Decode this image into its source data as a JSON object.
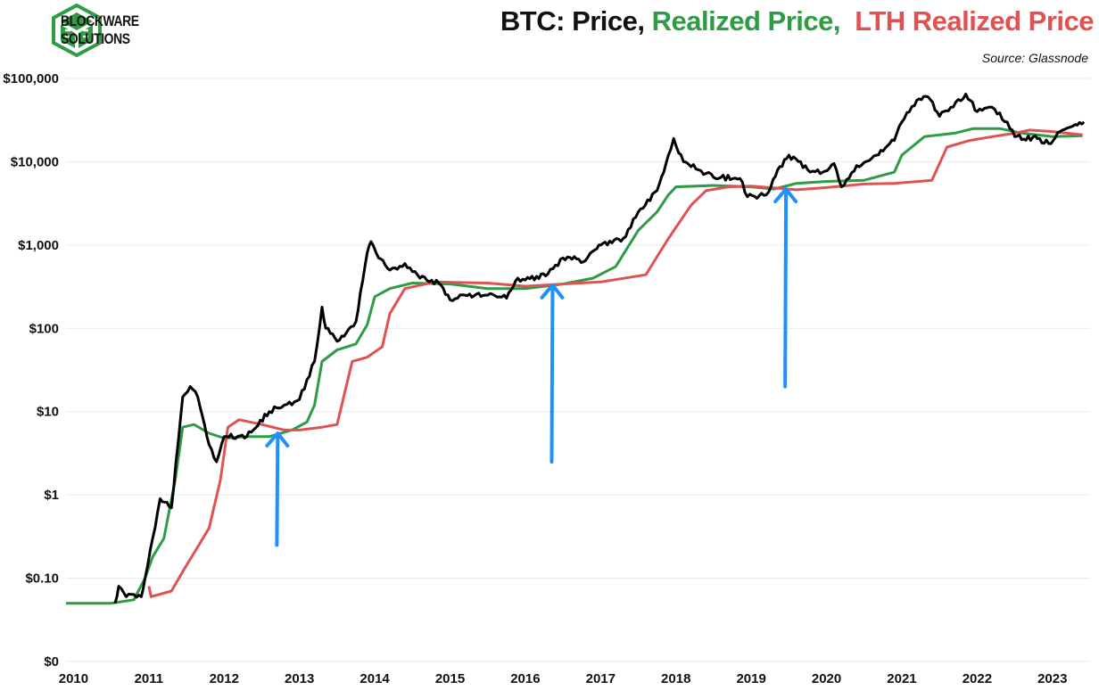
{
  "brand": {
    "line1": "BLOCKWARE",
    "line2": "SOLUTIONS",
    "color": "#2f9b45"
  },
  "title": {
    "part1": "BTC: Price, ",
    "part2": "Realized Price,",
    "part3": "  LTH Realized Price",
    "color1": "#111111",
    "color2": "#2f9b45",
    "color3": "#e05252"
  },
  "source": "Source: Glassnode",
  "chart_data": {
    "type": "line",
    "y_scale": "log",
    "ylim": [
      0.01,
      100000
    ],
    "xlim": [
      2009.9,
      2023.5
    ],
    "y_ticks": [
      {
        "value": 0.01,
        "label": "$0"
      },
      {
        "value": 0.1,
        "label": "$0.10"
      },
      {
        "value": 1,
        "label": "$1"
      },
      {
        "value": 10,
        "label": "$10"
      },
      {
        "value": 100,
        "label": "$100"
      },
      {
        "value": 1000,
        "label": "$1,000"
      },
      {
        "value": 10000,
        "label": "$10,000"
      },
      {
        "value": 100000,
        "label": "$100,000"
      }
    ],
    "x_ticks": [
      {
        "value": 2010,
        "label": "2010"
      },
      {
        "value": 2011,
        "label": "2011"
      },
      {
        "value": 2012,
        "label": "2012"
      },
      {
        "value": 2013,
        "label": "2013"
      },
      {
        "value": 2014,
        "label": "2014"
      },
      {
        "value": 2015,
        "label": "2015"
      },
      {
        "value": 2016,
        "label": "2016"
      },
      {
        "value": 2017,
        "label": "2017"
      },
      {
        "value": 2018,
        "label": "2018"
      },
      {
        "value": 2019,
        "label": "2019"
      },
      {
        "value": 2020,
        "label": "2020"
      },
      {
        "value": 2021,
        "label": "2021"
      },
      {
        "value": 2022,
        "label": "2022"
      },
      {
        "value": 2023,
        "label": "2023"
      }
    ],
    "series": [
      {
        "name": "Realized Price",
        "color": "#2f9b45",
        "points": [
          [
            2009.9,
            0.05
          ],
          [
            2010.5,
            0.05
          ],
          [
            2010.8,
            0.055
          ],
          [
            2010.95,
            0.1
          ],
          [
            2011.05,
            0.18
          ],
          [
            2011.2,
            0.3
          ],
          [
            2011.35,
            1.5
          ],
          [
            2011.45,
            6.5
          ],
          [
            2011.6,
            7
          ],
          [
            2011.8,
            5.5
          ],
          [
            2012.0,
            4.8
          ],
          [
            2012.3,
            5.0
          ],
          [
            2012.6,
            5.0
          ],
          [
            2012.9,
            6.0
          ],
          [
            2013.1,
            7.5
          ],
          [
            2013.2,
            12
          ],
          [
            2013.3,
            40
          ],
          [
            2013.5,
            55
          ],
          [
            2013.75,
            65
          ],
          [
            2013.9,
            110
          ],
          [
            2014.0,
            240
          ],
          [
            2014.2,
            300
          ],
          [
            2014.5,
            350
          ],
          [
            2015.0,
            340
          ],
          [
            2015.5,
            300
          ],
          [
            2016.0,
            300
          ],
          [
            2016.5,
            340
          ],
          [
            2016.9,
            400
          ],
          [
            2017.2,
            550
          ],
          [
            2017.5,
            1500
          ],
          [
            2017.75,
            2500
          ],
          [
            2017.9,
            4000
          ],
          [
            2018.0,
            5000
          ],
          [
            2018.5,
            5200
          ],
          [
            2019.0,
            5000
          ],
          [
            2019.3,
            4700
          ],
          [
            2019.6,
            5500
          ],
          [
            2020.0,
            5800
          ],
          [
            2020.5,
            6000
          ],
          [
            2020.9,
            7500
          ],
          [
            2021.0,
            12000
          ],
          [
            2021.3,
            20000
          ],
          [
            2021.7,
            22000
          ],
          [
            2021.95,
            25000
          ],
          [
            2022.3,
            25000
          ],
          [
            2022.6,
            22000
          ],
          [
            2023.0,
            20000
          ],
          [
            2023.4,
            20500
          ]
        ]
      },
      {
        "name": "LTH Realized Price",
        "color": "#e05252",
        "points": [
          [
            2011.0,
            0.08
          ],
          [
            2011.03,
            0.06
          ],
          [
            2011.3,
            0.07
          ],
          [
            2011.45,
            0.12
          ],
          [
            2011.6,
            0.2
          ],
          [
            2011.8,
            0.4
          ],
          [
            2011.95,
            1.5
          ],
          [
            2012.05,
            6.5
          ],
          [
            2012.2,
            8
          ],
          [
            2012.5,
            7
          ],
          [
            2012.8,
            6
          ],
          [
            2013.0,
            6
          ],
          [
            2013.3,
            6.5
          ],
          [
            2013.5,
            7
          ],
          [
            2013.7,
            40
          ],
          [
            2013.9,
            45
          ],
          [
            2014.1,
            60
          ],
          [
            2014.2,
            150
          ],
          [
            2014.4,
            300
          ],
          [
            2014.8,
            360
          ],
          [
            2015.5,
            350
          ],
          [
            2016.0,
            320
          ],
          [
            2016.5,
            340
          ],
          [
            2017.0,
            360
          ],
          [
            2017.6,
            440
          ],
          [
            2017.9,
            1200
          ],
          [
            2018.2,
            3000
          ],
          [
            2018.4,
            4500
          ],
          [
            2018.7,
            5000
          ],
          [
            2019.0,
            5100
          ],
          [
            2019.6,
            4600
          ],
          [
            2020.0,
            4900
          ],
          [
            2020.5,
            5400
          ],
          [
            2020.9,
            5500
          ],
          [
            2021.4,
            6000
          ],
          [
            2021.6,
            15000
          ],
          [
            2021.9,
            18000
          ],
          [
            2022.2,
            20000
          ],
          [
            2022.5,
            22000
          ],
          [
            2022.7,
            24000
          ],
          [
            2023.0,
            23000
          ],
          [
            2023.4,
            21000
          ]
        ]
      },
      {
        "name": "Price",
        "color": "#000000",
        "points": [
          [
            2010.55,
            0.05
          ],
          [
            2010.6,
            0.08
          ],
          [
            2010.7,
            0.06
          ],
          [
            2010.9,
            0.06
          ],
          [
            2010.95,
            0.1
          ],
          [
            2011.05,
            0.3
          ],
          [
            2011.15,
            0.9
          ],
          [
            2011.3,
            0.7
          ],
          [
            2011.45,
            15
          ],
          [
            2011.55,
            20
          ],
          [
            2011.65,
            15
          ],
          [
            2011.8,
            4
          ],
          [
            2011.9,
            2.5
          ],
          [
            2012.0,
            5
          ],
          [
            2012.3,
            5
          ],
          [
            2012.6,
            10
          ],
          [
            2012.8,
            12
          ],
          [
            2013.0,
            14
          ],
          [
            2013.2,
            40
          ],
          [
            2013.3,
            180
          ],
          [
            2013.35,
            100
          ],
          [
            2013.5,
            70
          ],
          [
            2013.75,
            120
          ],
          [
            2013.9,
            800
          ],
          [
            2013.95,
            1100
          ],
          [
            2014.05,
            700
          ],
          [
            2014.2,
            500
          ],
          [
            2014.4,
            600
          ],
          [
            2014.6,
            400
          ],
          [
            2014.85,
            350
          ],
          [
            2015.0,
            220
          ],
          [
            2015.2,
            250
          ],
          [
            2015.5,
            250
          ],
          [
            2015.75,
            230
          ],
          [
            2015.9,
            400
          ],
          [
            2016.0,
            380
          ],
          [
            2016.3,
            450
          ],
          [
            2016.5,
            700
          ],
          [
            2016.8,
            650
          ],
          [
            2016.95,
            900
          ],
          [
            2017.0,
            1000
          ],
          [
            2017.3,
            1200
          ],
          [
            2017.5,
            2500
          ],
          [
            2017.75,
            4500
          ],
          [
            2017.9,
            12000
          ],
          [
            2017.97,
            19000
          ],
          [
            2018.1,
            10000
          ],
          [
            2018.3,
            8000
          ],
          [
            2018.5,
            6500
          ],
          [
            2018.85,
            6300
          ],
          [
            2018.95,
            3800
          ],
          [
            2019.2,
            4000
          ],
          [
            2019.35,
            8000
          ],
          [
            2019.5,
            12000
          ],
          [
            2019.75,
            8000
          ],
          [
            2019.95,
            7500
          ],
          [
            2020.1,
            9500
          ],
          [
            2020.2,
            5000
          ],
          [
            2020.4,
            9000
          ],
          [
            2020.6,
            11000
          ],
          [
            2020.9,
            18000
          ],
          [
            2021.0,
            30000
          ],
          [
            2021.2,
            55000
          ],
          [
            2021.35,
            60000
          ],
          [
            2021.5,
            35000
          ],
          [
            2021.65,
            45000
          ],
          [
            2021.85,
            65000
          ],
          [
            2022.0,
            40000
          ],
          [
            2022.2,
            45000
          ],
          [
            2022.4,
            30000
          ],
          [
            2022.5,
            20000
          ],
          [
            2022.8,
            19000
          ],
          [
            2022.95,
            16500
          ],
          [
            2023.1,
            23000
          ],
          [
            2023.3,
            28000
          ],
          [
            2023.42,
            30000
          ]
        ]
      }
    ],
    "annotations": [
      {
        "type": "arrow",
        "color": "#1e90ff",
        "x": 2012.7,
        "y_from": 0.25,
        "y_to": 5.5
      },
      {
        "type": "arrow",
        "color": "#1e90ff",
        "x": 2016.35,
        "y_from": 2.5,
        "y_to": 330
      },
      {
        "type": "arrow",
        "color": "#1e90ff",
        "x": 2019.45,
        "y_from": 20,
        "y_to": 4700
      }
    ],
    "grid": true
  }
}
